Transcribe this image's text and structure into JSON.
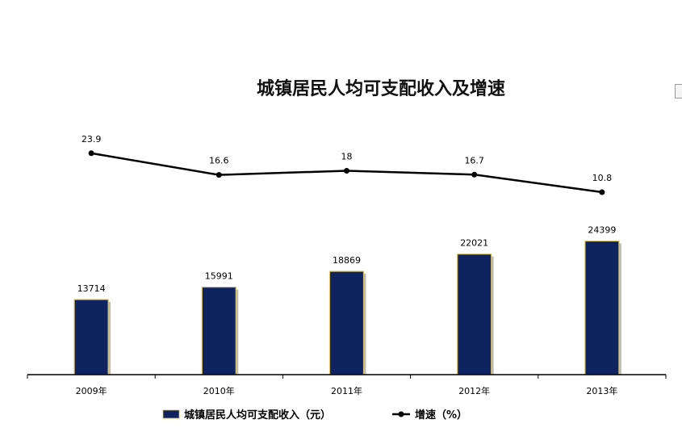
{
  "chart_data": {
    "type": "bar+line",
    "title": "城镇居民人均可支配收入及增速",
    "categories": [
      "2009年",
      "2010年",
      "2011年",
      "2012年",
      "2013年"
    ],
    "series": [
      {
        "name": "城镇居民人均可支配收入（元）",
        "type": "bar",
        "color": "#0f2360",
        "values": [
          13714,
          15991,
          18869,
          22021,
          24399
        ]
      },
      {
        "name": "增速（%）",
        "type": "line",
        "color": "#000000",
        "values": [
          23.9,
          16.6,
          18,
          16.7,
          10.8
        ]
      }
    ],
    "value_labels": {
      "bar": [
        "13714",
        "15991",
        "18869",
        "22021",
        "24399"
      ],
      "line": [
        "23.9",
        "16.6",
        "18",
        "16.7",
        "10.8"
      ]
    },
    "legend": {
      "position": "bottom",
      "bar_label": "城镇居民人均可支配收入（元）",
      "line_label": "增速（%）"
    },
    "grid": false,
    "axes_visible": {
      "x": true,
      "y": false
    }
  }
}
